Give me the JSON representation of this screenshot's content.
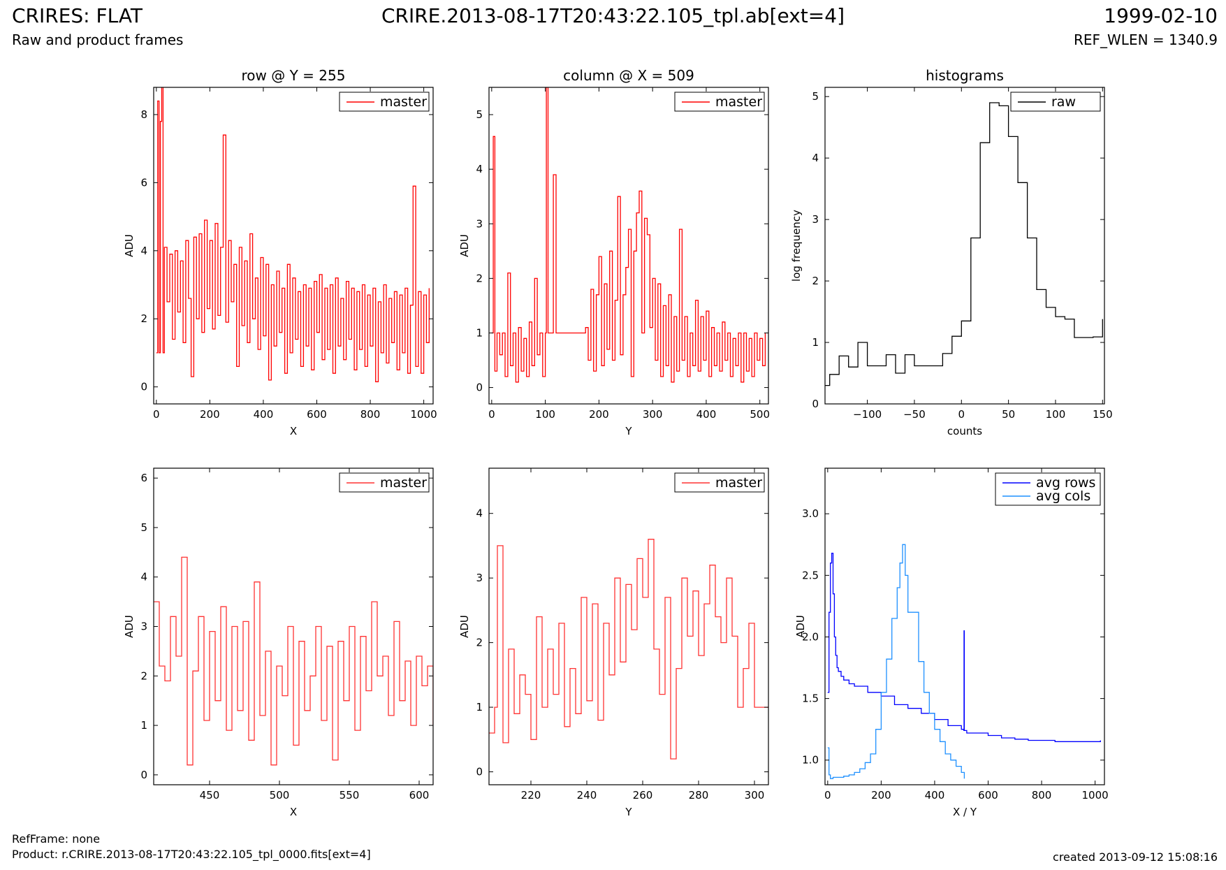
{
  "header": {
    "title": "CRIRES: FLAT",
    "subtitle": "Raw and product frames",
    "file_title": "CRIRE.2013-08-17T20:43:22.105_tpl.ab[ext=4]",
    "date": "1999-02-10",
    "ref_wlen": "REF_WLEN = 1340.9"
  },
  "footer": {
    "ref_frame": "RefFrame: none",
    "product": "Product: r.CRIRE.2013-08-17T20:43:22.105_tpl_0000.fits[ext=4]",
    "created": "created 2013-09-12 15:08:16"
  },
  "colors": {
    "red": "#ff0000",
    "red_light": "#ff3333",
    "black": "#000000",
    "blue": "#0000ff",
    "light_blue": "#1e90ff"
  },
  "chart_data": [
    {
      "type": "line",
      "title": "row @ Y = 255",
      "xlabel": "X",
      "ylabel": "ADU",
      "xlim": [
        -10,
        1035
      ],
      "ylim": [
        -0.5,
        8.8
      ],
      "xticks": [
        "0",
        "200",
        "400",
        "600",
        "800",
        "1000"
      ],
      "yticks": [
        "0",
        "2",
        "4",
        "6",
        "8"
      ],
      "legend": "top-right",
      "series": [
        {
          "name": "master",
          "color": "#ff0000",
          "x": [
            0,
            5,
            10,
            15,
            20,
            25,
            30,
            40,
            50,
            60,
            70,
            80,
            90,
            100,
            110,
            120,
            130,
            140,
            150,
            160,
            170,
            180,
            190,
            200,
            210,
            220,
            230,
            240,
            250,
            260,
            270,
            280,
            290,
            300,
            310,
            320,
            330,
            340,
            350,
            360,
            370,
            380,
            390,
            400,
            410,
            420,
            430,
            440,
            450,
            460,
            470,
            480,
            490,
            500,
            510,
            520,
            530,
            540,
            550,
            560,
            570,
            580,
            590,
            600,
            610,
            620,
            630,
            640,
            650,
            660,
            670,
            680,
            690,
            700,
            710,
            720,
            730,
            740,
            750,
            760,
            770,
            780,
            790,
            800,
            810,
            820,
            830,
            840,
            850,
            860,
            870,
            880,
            890,
            900,
            910,
            920,
            930,
            940,
            950,
            960,
            970,
            980,
            990,
            1000,
            1010,
            1020
          ],
          "y": [
            1.0,
            8.4,
            1.0,
            7.8,
            8.9,
            1.0,
            4.1,
            2.5,
            3.9,
            1.4,
            4.0,
            2.2,
            3.7,
            1.3,
            4.3,
            2.6,
            0.3,
            4.4,
            2.0,
            4.5,
            1.6,
            4.9,
            2.3,
            4.3,
            1.7,
            4.8,
            2.1,
            4.1,
            7.4,
            1.9,
            4.3,
            2.5,
            3.6,
            0.6,
            4.1,
            1.8,
            3.7,
            1.3,
            4.5,
            2.0,
            3.2,
            1.1,
            3.8,
            1.5,
            3.6,
            0.2,
            3.0,
            1.2,
            3.4,
            1.6,
            2.9,
            0.4,
            3.6,
            1.0,
            3.2,
            1.4,
            2.8,
            0.6,
            3.0,
            1.2,
            2.9,
            0.5,
            3.1,
            1.6,
            3.3,
            0.8,
            2.9,
            1.1,
            3.0,
            0.4,
            3.2,
            1.2,
            2.6,
            0.8,
            3.1,
            1.4,
            2.9,
            0.5,
            2.8,
            1.1,
            3.0,
            0.6,
            2.7,
            1.2,
            2.9,
            0.15,
            2.5,
            1.0,
            3.0,
            0.7,
            2.6,
            1.3,
            2.8,
            0.5,
            2.7,
            1.0,
            2.9,
            0.4,
            2.4,
            5.9,
            0.6,
            2.8,
            0.4,
            2.7,
            1.3,
            2.9
          ]
        }
      ]
    },
    {
      "type": "line",
      "title": "column @ X = 509",
      "xlabel": "Y",
      "ylabel": "ADU",
      "xlim": [
        -5,
        516
      ],
      "ylim": [
        -0.3,
        5.5
      ],
      "xticks": [
        "0",
        "100",
        "200",
        "300",
        "400",
        "500"
      ],
      "yticks": [
        "0",
        "1",
        "2",
        "3",
        "4",
        "5"
      ],
      "legend": "top-right",
      "series": [
        {
          "name": "master",
          "color": "#ff0000",
          "x": [
            0,
            3,
            6,
            10,
            15,
            20,
            25,
            30,
            35,
            40,
            45,
            50,
            55,
            60,
            65,
            70,
            75,
            80,
            85,
            90,
            95,
            100,
            102,
            105,
            110,
            115,
            120,
            125,
            130,
            140,
            150,
            160,
            170,
            175,
            180,
            185,
            190,
            195,
            200,
            205,
            210,
            215,
            220,
            225,
            230,
            235,
            240,
            245,
            250,
            255,
            260,
            265,
            270,
            275,
            280,
            285,
            290,
            295,
            300,
            305,
            310,
            315,
            320,
            325,
            330,
            335,
            340,
            345,
            350,
            355,
            360,
            365,
            370,
            375,
            380,
            385,
            390,
            395,
            400,
            405,
            410,
            415,
            420,
            425,
            430,
            435,
            440,
            445,
            450,
            455,
            460,
            465,
            470,
            475,
            480,
            485,
            490,
            495,
            500,
            505,
            510
          ],
          "y": [
            1.0,
            4.6,
            0.3,
            1.0,
            0.6,
            1.0,
            0.2,
            2.1,
            0.4,
            1.0,
            0.1,
            1.1,
            0.3,
            0.9,
            0.2,
            1.2,
            0.4,
            2.0,
            0.6,
            1.0,
            0.2,
            1.0,
            5.5,
            1.0,
            1.0,
            3.9,
            1.0,
            1.0,
            1.0,
            1.0,
            1.0,
            1.0,
            1.0,
            1.1,
            0.5,
            1.8,
            0.3,
            1.7,
            2.4,
            0.4,
            1.9,
            0.7,
            2.5,
            0.5,
            1.6,
            3.5,
            0.6,
            1.7,
            2.2,
            2.9,
            0.2,
            2.5,
            3.2,
            3.6,
            1.0,
            3.1,
            2.8,
            1.1,
            2.0,
            0.5,
            1.9,
            0.2,
            1.5,
            0.4,
            1.7,
            0.1,
            1.3,
            0.3,
            2.9,
            0.5,
            1.3,
            0.2,
            1.0,
            0.4,
            1.6,
            0.3,
            1.3,
            0.5,
            1.4,
            0.2,
            1.1,
            0.4,
            1.0,
            0.3,
            1.2,
            0.5,
            1.0,
            0.2,
            0.9,
            0.4,
            1.0,
            0.1,
            1.0,
            0.3,
            0.9,
            0.2,
            1.0,
            0.5,
            0.9,
            0.4,
            1.0
          ]
        }
      ]
    },
    {
      "type": "line",
      "title": "histograms",
      "xlabel": "counts",
      "ylabel": "log frequency",
      "xlim": [
        -145,
        152
      ],
      "ylim": [
        0,
        5.15
      ],
      "xticks": [
        "−100",
        "−50",
        "0",
        "50",
        "100",
        "150"
      ],
      "yticks": [
        "0",
        "1",
        "2",
        "3",
        "4",
        "5"
      ],
      "legend": "top-right",
      "series": [
        {
          "name": "raw",
          "color": "#000000",
          "x": [
            -145,
            -140,
            -130,
            -120,
            -110,
            -100,
            -90,
            -80,
            -70,
            -60,
            -50,
            -40,
            -30,
            -20,
            -10,
            0,
            10,
            20,
            30,
            40,
            50,
            60,
            70,
            80,
            90,
            100,
            110,
            120,
            130,
            140,
            150
          ],
          "y": [
            0.3,
            0.48,
            0.78,
            0.6,
            1.0,
            0.62,
            0.62,
            0.8,
            0.5,
            0.8,
            0.62,
            0.62,
            0.62,
            0.82,
            1.1,
            1.35,
            2.7,
            4.25,
            4.9,
            4.85,
            4.35,
            3.6,
            2.7,
            1.86,
            1.57,
            1.42,
            1.38,
            1.08,
            1.08,
            1.09,
            1.38
          ]
        }
      ]
    },
    {
      "type": "line",
      "title": "",
      "xlabel": "X",
      "ylabel": "ADU",
      "xlim": [
        410,
        610
      ],
      "ylim": [
        -0.2,
        6.2
      ],
      "xticks": [
        "450",
        "500",
        "550",
        "600"
      ],
      "yticks": [
        "0",
        "1",
        "2",
        "3",
        "4",
        "5",
        "6"
      ],
      "legend": "top-right",
      "series": [
        {
          "name": "master",
          "color": "#ff3333",
          "x": [
            410,
            414,
            418,
            422,
            426,
            430,
            434,
            438,
            442,
            446,
            450,
            454,
            458,
            462,
            466,
            470,
            474,
            478,
            482,
            486,
            490,
            494,
            498,
            502,
            506,
            510,
            514,
            518,
            522,
            526,
            530,
            534,
            538,
            542,
            546,
            550,
            554,
            558,
            562,
            566,
            570,
            574,
            578,
            582,
            586,
            590,
            594,
            598,
            602,
            606,
            610
          ],
          "y": [
            3.5,
            2.2,
            1.9,
            3.2,
            2.4,
            4.4,
            0.2,
            2.1,
            3.2,
            1.1,
            2.9,
            1.5,
            3.4,
            0.9,
            3.0,
            1.3,
            3.1,
            0.7,
            3.9,
            1.2,
            2.5,
            0.2,
            2.2,
            1.6,
            3.0,
            0.6,
            2.7,
            1.3,
            2.0,
            3.0,
            1.1,
            2.6,
            0.3,
            2.7,
            1.5,
            3.0,
            0.9,
            2.8,
            1.7,
            3.5,
            2.0,
            2.4,
            1.2,
            3.1,
            1.5,
            2.3,
            1.0,
            2.4,
            1.8,
            2.2,
            1.0
          ]
        }
      ]
    },
    {
      "type": "line",
      "title": "",
      "xlabel": "Y",
      "ylabel": "ADU",
      "xlim": [
        205,
        305
      ],
      "ylim": [
        -0.2,
        4.7
      ],
      "xticks": [
        "220",
        "240",
        "260",
        "280",
        "300"
      ],
      "yticks": [
        "0",
        "1",
        "2",
        "3",
        "4"
      ],
      "legend": "top-right",
      "series": [
        {
          "name": "master",
          "color": "#ff3333",
          "x": [
            205,
            207,
            208,
            210,
            212,
            214,
            216,
            218,
            220,
            222,
            224,
            226,
            228,
            230,
            232,
            234,
            236,
            238,
            240,
            242,
            244,
            246,
            248,
            250,
            252,
            254,
            256,
            258,
            260,
            262,
            264,
            266,
            268,
            270,
            272,
            274,
            276,
            278,
            280,
            282,
            284,
            286,
            288,
            290,
            292,
            294,
            296,
            298,
            300,
            302,
            305
          ],
          "y": [
            0.6,
            1.0,
            3.5,
            0.45,
            1.9,
            0.9,
            1.5,
            1.2,
            0.5,
            2.4,
            1.0,
            1.9,
            1.2,
            2.3,
            0.7,
            1.6,
            0.9,
            2.7,
            1.1,
            2.6,
            0.8,
            2.3,
            1.5,
            3.0,
            1.7,
            2.9,
            2.2,
            3.3,
            2.7,
            3.6,
            1.9,
            1.2,
            2.7,
            0.2,
            1.6,
            3.0,
            2.1,
            2.8,
            1.8,
            2.6,
            3.2,
            2.4,
            2.0,
            3.0,
            2.1,
            1.0,
            1.6,
            2.3,
            1.0,
            1.0,
            1.0
          ]
        }
      ]
    },
    {
      "type": "line",
      "title": "",
      "xlabel": "X / Y",
      "ylabel": "ADU",
      "xlim": [
        -10,
        1035
      ],
      "ylim": [
        0.8,
        3.37
      ],
      "xticks": [
        "0",
        "200",
        "400",
        "600",
        "800",
        "1000"
      ],
      "yticks": [
        "1.0",
        "1.5",
        "2.0",
        "2.5",
        "3.0"
      ],
      "legend": "top-right",
      "series": [
        {
          "name": "avg rows",
          "color": "#0000ff",
          "x": [
            0,
            5,
            10,
            15,
            20,
            25,
            30,
            35,
            40,
            50,
            60,
            80,
            100,
            150,
            200,
            250,
            300,
            350,
            400,
            450,
            500,
            509,
            510,
            511,
            520,
            550,
            600,
            650,
            700,
            750,
            800,
            850,
            900,
            950,
            1000,
            1020
          ],
          "y": [
            1.55,
            2.2,
            2.6,
            2.68,
            2.35,
            2.0,
            1.85,
            1.75,
            1.72,
            1.68,
            1.65,
            1.62,
            1.6,
            1.55,
            1.52,
            1.45,
            1.42,
            1.38,
            1.33,
            1.28,
            1.25,
            1.24,
            2.05,
            1.24,
            1.22,
            1.22,
            1.2,
            1.18,
            1.17,
            1.16,
            1.16,
            1.15,
            1.15,
            1.15,
            1.15,
            1.16
          ]
        },
        {
          "name": "avg cols",
          "color": "#1e90ff",
          "x": [
            0,
            5,
            10,
            20,
            40,
            60,
            80,
            100,
            120,
            140,
            160,
            180,
            200,
            220,
            240,
            260,
            270,
            280,
            290,
            300,
            320,
            340,
            360,
            380,
            400,
            420,
            440,
            460,
            480,
            500,
            511
          ],
          "y": [
            1.1,
            0.88,
            0.85,
            0.86,
            0.86,
            0.87,
            0.88,
            0.9,
            0.93,
            0.98,
            1.05,
            1.25,
            1.55,
            1.82,
            2.15,
            2.4,
            2.6,
            2.75,
            2.5,
            2.2,
            2.2,
            1.8,
            1.55,
            1.38,
            1.25,
            1.15,
            1.05,
            1.0,
            0.95,
            0.9,
            0.85
          ]
        }
      ]
    }
  ]
}
